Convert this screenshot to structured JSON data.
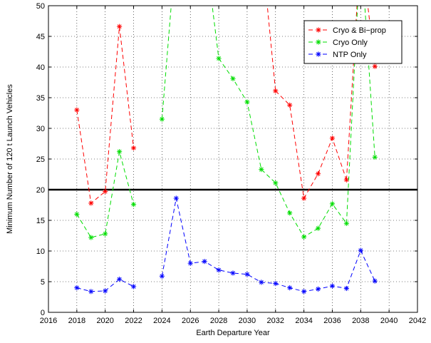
{
  "chart_data": {
    "type": "line",
    "title": "",
    "xlabel": "Earth Departure Year",
    "ylabel": "Minimum Number of 120 t Launch Vehicles",
    "xlim": [
      2016,
      2042
    ],
    "ylim": [
      0,
      50
    ],
    "x_ticks": [
      "2016",
      "2018",
      "2020",
      "2022",
      "2024",
      "2026",
      "2028",
      "2030",
      "2032",
      "2034",
      "2036",
      "2038",
      "2040",
      "2042"
    ],
    "y_ticks": [
      "0",
      "5",
      "10",
      "15",
      "20",
      "25",
      "30",
      "35",
      "40",
      "45",
      "50"
    ],
    "grid": true,
    "legend_position": "top-right",
    "reference_line": 20,
    "series": [
      {
        "name": "Cryo & Bi−prop",
        "color": "#ff0000",
        "segments": [
          [
            [
              2018,
              33
            ],
            [
              2019,
              17.8
            ],
            [
              2020,
              19.7
            ],
            [
              2021,
              46.6
            ],
            [
              2022,
              26.8
            ]
          ],
          [
            [
              2032,
              36.1
            ],
            [
              2033,
              33.8
            ],
            [
              2034,
              18.6
            ],
            [
              2035,
              22.6
            ],
            [
              2036,
              28.4
            ],
            [
              2037,
              21.6
            ]
          ],
          [
            [
              2039,
              40.1
            ]
          ]
        ],
        "off_scale": [
          [
            [
              2031,
              60
            ],
            [
              2032,
              36.1
            ]
          ],
          [
            [
              2037,
              21.6
            ],
            [
              2038,
              60
            ]
          ],
          [
            [
              2038,
              60
            ],
            [
              2039,
              40.1
            ]
          ]
        ]
      },
      {
        "name": "Cryo Only",
        "color": "#00dd00",
        "segments": [
          [
            [
              2018,
              16
            ],
            [
              2019,
              12.2
            ],
            [
              2020,
              12.8
            ],
            [
              2021,
              26.2
            ],
            [
              2022,
              17.6
            ]
          ],
          [
            [
              2024,
              31.5
            ]
          ],
          [
            [
              2028,
              41.4
            ],
            [
              2029,
              38.1
            ],
            [
              2030,
              34.3
            ],
            [
              2031,
              23.3
            ],
            [
              2032,
              21.1
            ],
            [
              2033,
              16.2
            ],
            [
              2034,
              12.3
            ],
            [
              2035,
              13.7
            ],
            [
              2036,
              17.7
            ],
            [
              2037,
              14.5
            ]
          ],
          [
            [
              2039,
              25.3
            ]
          ]
        ],
        "off_scale": [
          [
            [
              2024,
              31.5
            ],
            [
              2025,
              60
            ]
          ],
          [
            [
              2027,
              60
            ],
            [
              2028,
              41.4
            ]
          ],
          [
            [
              2037,
              14.5
            ],
            [
              2038,
              60
            ]
          ],
          [
            [
              2038,
              60
            ],
            [
              2039,
              25.3
            ]
          ]
        ]
      },
      {
        "name": "NTP Only",
        "color": "#0000ff",
        "segments": [
          [
            [
              2018,
              4
            ],
            [
              2019,
              3.4
            ],
            [
              2020,
              3.5
            ],
            [
              2021,
              5.4
            ],
            [
              2022,
              4.2
            ]
          ],
          [
            [
              2024,
              5.9
            ],
            [
              2025,
              18.6
            ],
            [
              2026,
              8
            ],
            [
              2027,
              8.3
            ],
            [
              2028,
              6.9
            ],
            [
              2029,
              6.4
            ],
            [
              2030,
              6.2
            ],
            [
              2031,
              4.9
            ],
            [
              2032,
              4.7
            ],
            [
              2033,
              4
            ],
            [
              2034,
              3.4
            ],
            [
              2035,
              3.8
            ],
            [
              2036,
              4.3
            ],
            [
              2037,
              3.9
            ],
            [
              2038,
              10.1
            ],
            [
              2039,
              5.1
            ]
          ]
        ]
      }
    ]
  }
}
